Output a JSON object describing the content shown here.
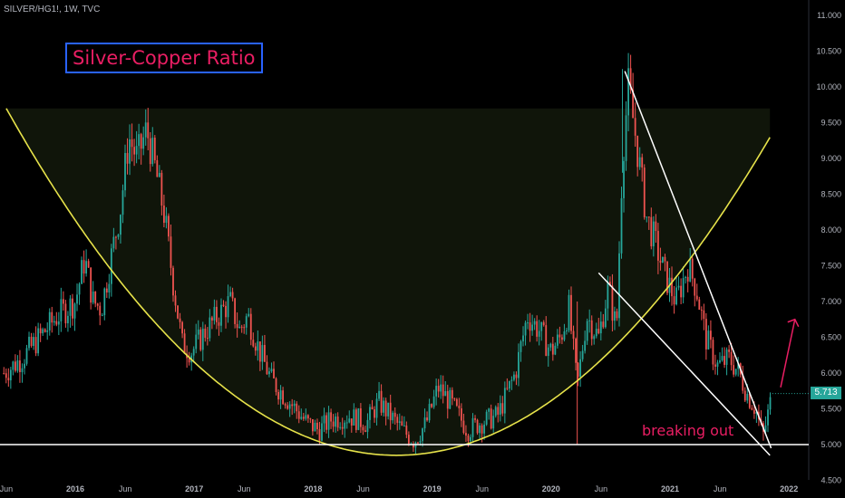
{
  "header": {
    "symbol": "SILVER/HG1!, 1W, TVC"
  },
  "annotations": {
    "title": "Silver-Copper Ratio",
    "callout": "breaking out"
  },
  "colors": {
    "up": "#26a69a",
    "down": "#ef5350",
    "cup": "#e6e24a",
    "trendline": "#ffffff",
    "arrow": "#e91e63",
    "title_text": "#e91e63",
    "title_border": "#2962ff"
  },
  "chart_data": {
    "type": "candlestick",
    "instrument": "SILVER/HG1!",
    "interval": "1W",
    "ylim": [
      4.5,
      11.0
    ],
    "y_ticks": [
      "11.000",
      "10.500",
      "10.000",
      "9.500",
      "9.000",
      "8.500",
      "8.000",
      "7.500",
      "7.000",
      "6.500",
      "6.000",
      "5.500",
      "5.000",
      "4.500"
    ],
    "x_ticks": [
      {
        "label": "Jun",
        "t": 2015.42
      },
      {
        "label": "2016",
        "t": 2016.0
      },
      {
        "label": "Jun",
        "t": 2016.42
      },
      {
        "label": "2017",
        "t": 2017.0
      },
      {
        "label": "Jun",
        "t": 2017.42
      },
      {
        "label": "2018",
        "t": 2018.0
      },
      {
        "label": "Jun",
        "t": 2018.42
      },
      {
        "label": "2019",
        "t": 2019.0
      },
      {
        "label": "Jun",
        "t": 2019.42
      },
      {
        "label": "2020",
        "t": 2020.0
      },
      {
        "label": "Jun",
        "t": 2020.42
      },
      {
        "label": "2021",
        "t": 2021.0
      },
      {
        "label": "Jun",
        "t": 2021.42
      },
      {
        "label": "2022",
        "t": 2022.0
      }
    ],
    "last_price": "5.713",
    "price_path": [
      [
        2015.4,
        6.0
      ],
      [
        2015.55,
        6.2
      ],
      [
        2015.7,
        6.5
      ],
      [
        2015.85,
        6.8
      ],
      [
        2016.0,
        7.0
      ],
      [
        2016.08,
        7.6
      ],
      [
        2016.15,
        7.0
      ],
      [
        2016.22,
        6.9
      ],
      [
        2016.3,
        7.6
      ],
      [
        2016.38,
        8.3
      ],
      [
        2016.45,
        9.3
      ],
      [
        2016.52,
        9.0
      ],
      [
        2016.6,
        9.4
      ],
      [
        2016.68,
        8.8
      ],
      [
        2016.75,
        8.2
      ],
      [
        2016.82,
        7.3
      ],
      [
        2016.9,
        6.4
      ],
      [
        2016.98,
        6.3
      ],
      [
        2017.1,
        6.6
      ],
      [
        2017.2,
        6.8
      ],
      [
        2017.3,
        7.0
      ],
      [
        2017.38,
        6.6
      ],
      [
        2017.45,
        6.8
      ],
      [
        2017.55,
        6.3
      ],
      [
        2017.65,
        5.9
      ],
      [
        2017.75,
        5.7
      ],
      [
        2017.85,
        5.5
      ],
      [
        2017.95,
        5.3
      ],
      [
        2018.05,
        5.2
      ],
      [
        2018.15,
        5.35
      ],
      [
        2018.3,
        5.4
      ],
      [
        2018.45,
        5.3
      ],
      [
        2018.55,
        5.6
      ],
      [
        2018.65,
        5.4
      ],
      [
        2018.75,
        5.2
      ],
      [
        2018.85,
        5.05
      ],
      [
        2018.95,
        5.3
      ],
      [
        2019.05,
        5.8
      ],
      [
        2019.15,
        5.6
      ],
      [
        2019.3,
        5.2
      ],
      [
        2019.4,
        5.3
      ],
      [
        2019.55,
        5.4
      ],
      [
        2019.7,
        6.0
      ],
      [
        2019.8,
        6.8
      ],
      [
        2019.9,
        6.6
      ],
      [
        2020.0,
        6.3
      ],
      [
        2020.08,
        6.5
      ],
      [
        2020.15,
        6.9
      ],
      [
        2020.22,
        5.8
      ],
      [
        2020.3,
        6.8
      ],
      [
        2020.4,
        6.5
      ],
      [
        2020.48,
        7.2
      ],
      [
        2020.55,
        6.6
      ],
      [
        2020.6,
        9.0
      ],
      [
        2020.65,
        10.0
      ],
      [
        2020.72,
        9.2
      ],
      [
        2020.8,
        8.2
      ],
      [
        2020.88,
        7.8
      ],
      [
        2020.95,
        7.4
      ],
      [
        2021.05,
        7.0
      ],
      [
        2021.15,
        7.5
      ],
      [
        2021.22,
        7.2
      ],
      [
        2021.3,
        6.5
      ],
      [
        2021.4,
        6.1
      ],
      [
        2021.5,
        6.2
      ],
      [
        2021.58,
        6.0
      ],
      [
        2021.65,
        5.7
      ],
      [
        2021.72,
        5.5
      ],
      [
        2021.78,
        5.1
      ],
      [
        2021.82,
        5.4
      ],
      [
        2021.86,
        5.713
      ]
    ],
    "levels": {
      "horizontal_support": 5.0,
      "cup_top": 9.7
    }
  }
}
